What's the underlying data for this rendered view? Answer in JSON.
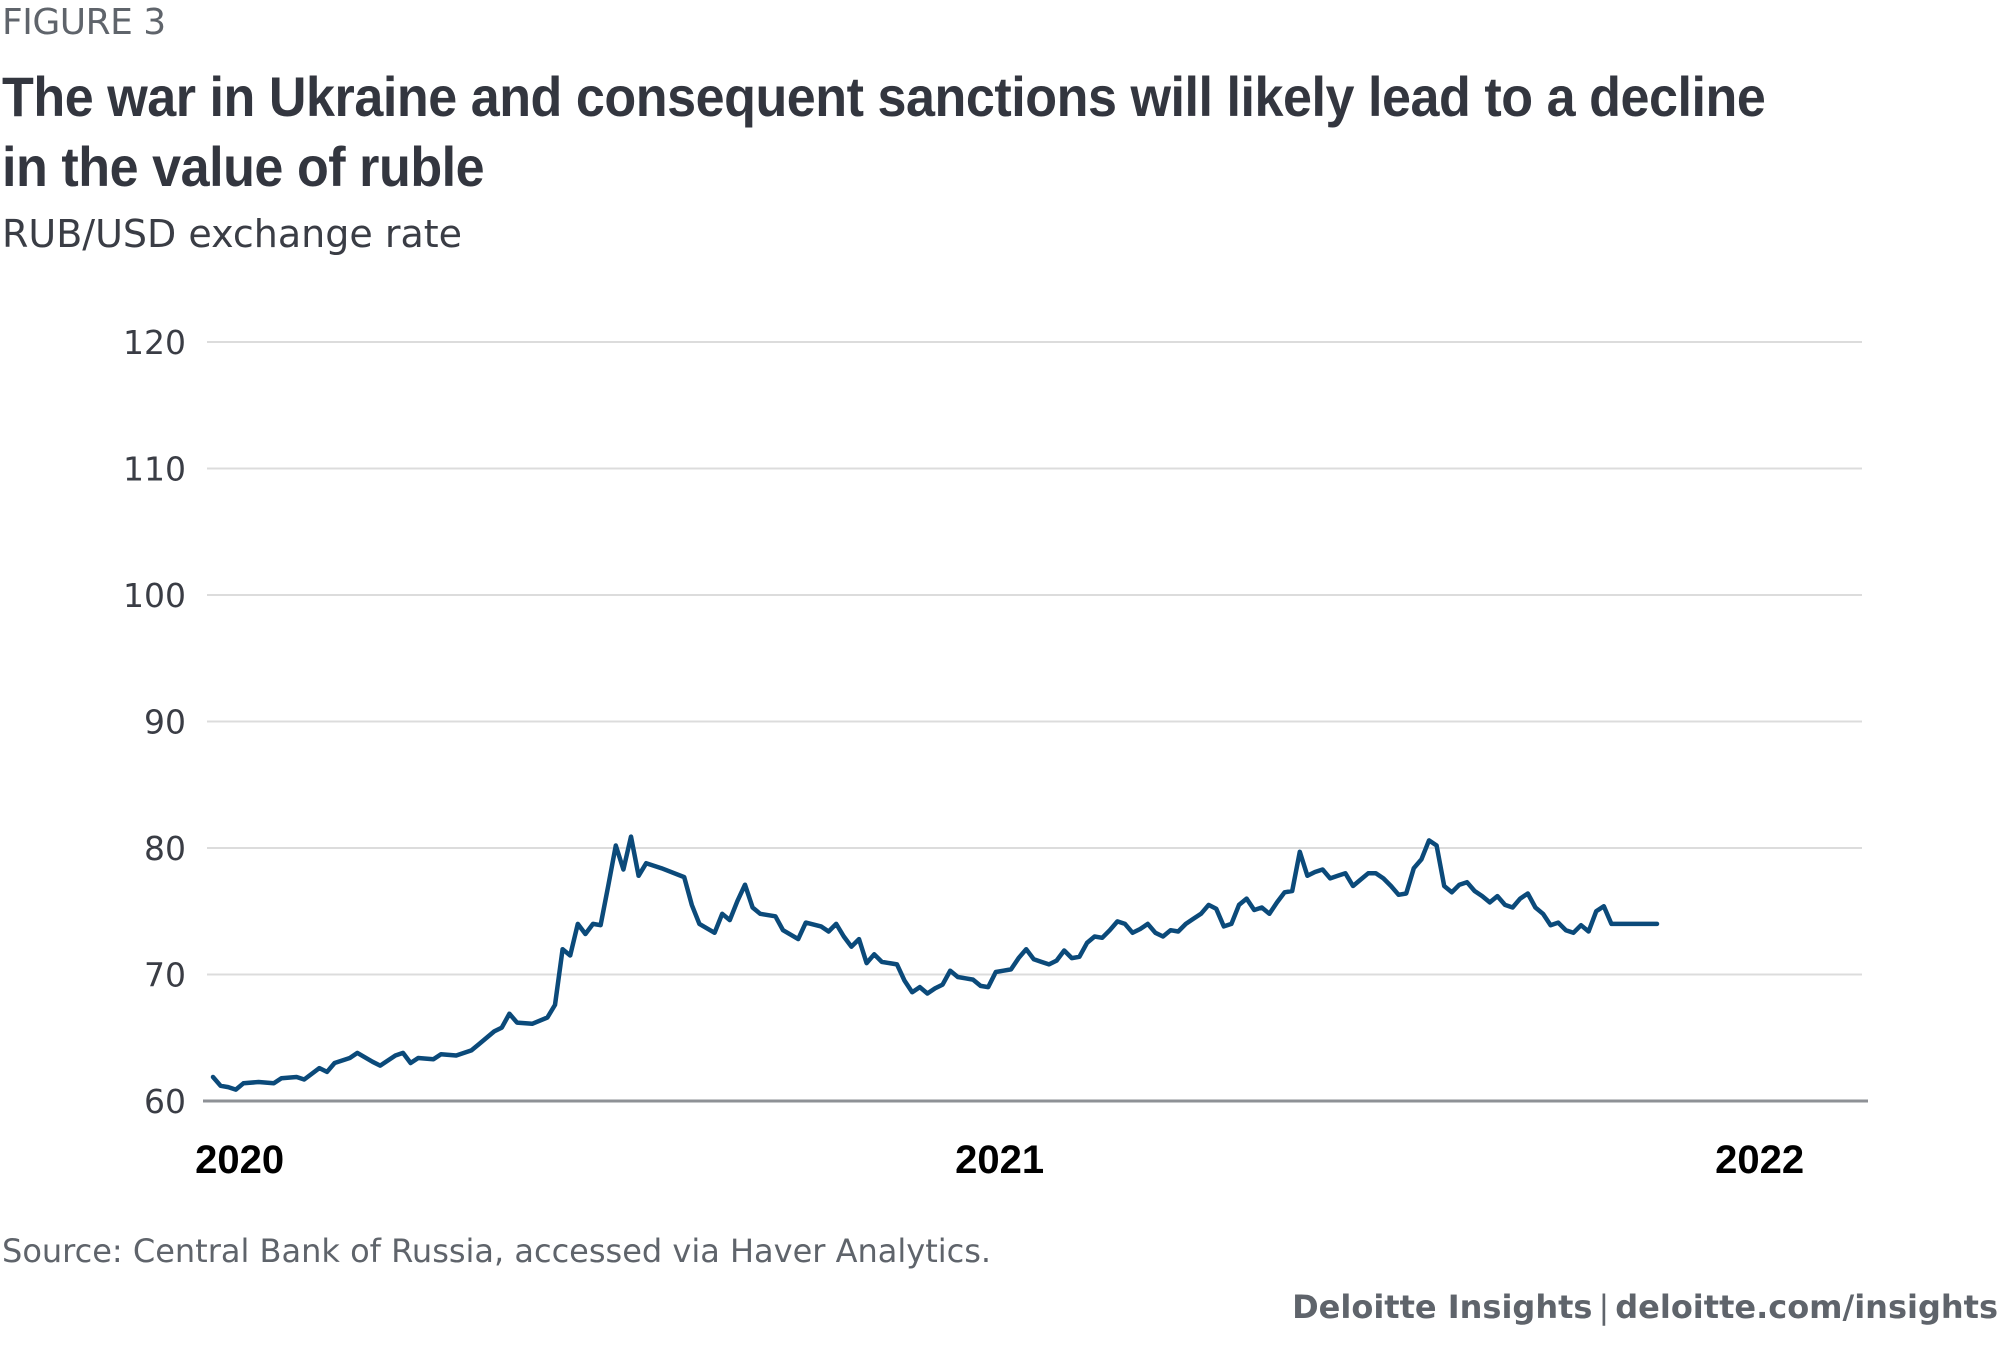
{
  "figure_label": "FIGURE 3",
  "title": "The war in Ukraine and consequent sanctions will likely lead to a decline in the value of ruble",
  "subtitle": "RUB/USD exchange rate",
  "source": "Source: Central Bank of Russia, accessed via Haver Analytics.",
  "brand": {
    "name": "Deloitte Insights",
    "separator": "|",
    "url": "deloitte.com/insights"
  },
  "colors": {
    "line": "#0b4a7a",
    "grid": "#dcdcdc",
    "axis": "#8e9196"
  },
  "chart_data": {
    "type": "line",
    "title": "RUB/USD exchange rate",
    "xlabel": "",
    "ylabel": "",
    "ylim": [
      60,
      120
    ],
    "yticks": [
      60,
      70,
      80,
      90,
      100,
      110,
      120
    ],
    "xticks": [
      {
        "label": "2020",
        "t": 0.035
      },
      {
        "label": "2021",
        "t": 1.035
      },
      {
        "label": "2022",
        "t": 2.035
      }
    ],
    "xlim": [
      0,
      2.2
    ],
    "grid": true,
    "legend": "none",
    "series": [
      {
        "name": "RUB/USD",
        "points": [
          [
            0.0,
            61.9
          ],
          [
            0.01,
            61.2
          ],
          [
            0.02,
            61.1
          ],
          [
            0.03,
            60.9
          ],
          [
            0.04,
            61.4
          ],
          [
            0.06,
            61.5
          ],
          [
            0.08,
            61.4
          ],
          [
            0.09,
            61.8
          ],
          [
            0.11,
            61.9
          ],
          [
            0.12,
            61.7
          ],
          [
            0.14,
            62.6
          ],
          [
            0.15,
            62.3
          ],
          [
            0.16,
            63.0
          ],
          [
            0.18,
            63.4
          ],
          [
            0.19,
            63.8
          ],
          [
            0.21,
            63.1
          ],
          [
            0.22,
            62.8
          ],
          [
            0.24,
            63.6
          ],
          [
            0.25,
            63.8
          ],
          [
            0.26,
            63.0
          ],
          [
            0.27,
            63.4
          ],
          [
            0.29,
            63.3
          ],
          [
            0.3,
            63.7
          ],
          [
            0.32,
            63.6
          ],
          [
            0.34,
            64.0
          ],
          [
            0.35,
            64.5
          ],
          [
            0.37,
            65.5
          ],
          [
            0.38,
            65.8
          ],
          [
            0.39,
            66.9
          ],
          [
            0.4,
            66.2
          ],
          [
            0.42,
            66.1
          ],
          [
            0.44,
            66.6
          ],
          [
            0.45,
            67.6
          ],
          [
            0.46,
            72.0
          ],
          [
            0.47,
            71.5
          ],
          [
            0.48,
            74.0
          ],
          [
            0.49,
            73.2
          ],
          [
            0.5,
            74.0
          ],
          [
            0.51,
            73.9
          ],
          [
            0.52,
            77.0
          ],
          [
            0.53,
            80.2
          ],
          [
            0.54,
            78.3
          ],
          [
            0.55,
            80.9
          ],
          [
            0.56,
            77.8
          ],
          [
            0.57,
            78.8
          ],
          [
            0.59,
            78.4
          ],
          [
            0.62,
            77.7
          ],
          [
            0.63,
            75.5
          ],
          [
            0.64,
            74.0
          ],
          [
            0.66,
            73.3
          ],
          [
            0.67,
            74.8
          ],
          [
            0.68,
            74.3
          ],
          [
            0.69,
            75.8
          ],
          [
            0.7,
            77.1
          ],
          [
            0.71,
            75.3
          ],
          [
            0.72,
            74.8
          ],
          [
            0.74,
            74.6
          ],
          [
            0.75,
            73.5
          ],
          [
            0.77,
            72.8
          ],
          [
            0.78,
            74.1
          ],
          [
            0.8,
            73.8
          ],
          [
            0.81,
            73.4
          ],
          [
            0.82,
            74.0
          ],
          [
            0.83,
            73.0
          ],
          [
            0.84,
            72.2
          ],
          [
            0.85,
            72.8
          ],
          [
            0.86,
            70.9
          ],
          [
            0.87,
            71.6
          ],
          [
            0.88,
            71.0
          ],
          [
            0.9,
            70.8
          ],
          [
            0.91,
            69.5
          ],
          [
            0.92,
            68.6
          ],
          [
            0.93,
            69.0
          ],
          [
            0.94,
            68.5
          ],
          [
            0.95,
            68.9
          ],
          [
            0.96,
            69.2
          ],
          [
            0.97,
            70.3
          ],
          [
            0.98,
            69.8
          ],
          [
            0.99,
            69.7
          ],
          [
            1.0,
            69.6
          ],
          [
            1.01,
            69.1
          ],
          [
            1.02,
            69.0
          ],
          [
            1.03,
            70.2
          ],
          [
            1.04,
            70.3
          ],
          [
            1.05,
            70.4
          ],
          [
            1.06,
            71.3
          ],
          [
            1.07,
            72.0
          ],
          [
            1.08,
            71.2
          ],
          [
            1.09,
            71.0
          ],
          [
            1.1,
            70.8
          ],
          [
            1.11,
            71.1
          ],
          [
            1.12,
            71.9
          ],
          [
            1.13,
            71.3
          ],
          [
            1.14,
            71.4
          ],
          [
            1.15,
            72.5
          ],
          [
            1.16,
            73.0
          ],
          [
            1.17,
            72.9
          ],
          [
            1.18,
            73.5
          ],
          [
            1.19,
            74.2
          ],
          [
            1.2,
            74.0
          ],
          [
            1.21,
            73.3
          ],
          [
            1.22,
            73.6
          ],
          [
            1.23,
            74.0
          ],
          [
            1.24,
            73.3
          ],
          [
            1.25,
            73.0
          ],
          [
            1.26,
            73.5
          ],
          [
            1.27,
            73.4
          ],
          [
            1.28,
            74.0
          ],
          [
            1.29,
            74.4
          ],
          [
            1.3,
            74.8
          ],
          [
            1.31,
            75.5
          ],
          [
            1.32,
            75.2
          ],
          [
            1.33,
            73.8
          ],
          [
            1.34,
            74.0
          ],
          [
            1.35,
            75.5
          ],
          [
            1.36,
            76.0
          ],
          [
            1.37,
            75.1
          ],
          [
            1.38,
            75.3
          ],
          [
            1.39,
            74.8
          ],
          [
            1.4,
            75.7
          ],
          [
            1.41,
            76.5
          ],
          [
            1.42,
            76.6
          ],
          [
            1.43,
            79.7
          ],
          [
            1.44,
            77.8
          ],
          [
            1.45,
            78.1
          ],
          [
            1.46,
            78.3
          ],
          [
            1.47,
            77.6
          ],
          [
            1.48,
            77.8
          ],
          [
            1.49,
            78.0
          ],
          [
            1.5,
            77.0
          ],
          [
            1.51,
            77.5
          ],
          [
            1.52,
            78.0
          ],
          [
            1.53,
            78.0
          ],
          [
            1.54,
            77.6
          ],
          [
            1.55,
            77.0
          ],
          [
            1.56,
            76.3
          ],
          [
            1.57,
            76.4
          ],
          [
            1.58,
            78.4
          ],
          [
            1.59,
            79.1
          ],
          [
            1.6,
            80.6
          ],
          [
            1.61,
            80.2
          ],
          [
            1.62,
            77.0
          ],
          [
            1.63,
            76.5
          ],
          [
            1.64,
            77.1
          ],
          [
            1.65,
            77.3
          ],
          [
            1.66,
            76.6
          ],
          [
            1.67,
            76.2
          ],
          [
            1.68,
            75.7
          ],
          [
            1.69,
            76.2
          ],
          [
            1.7,
            75.5
          ],
          [
            1.71,
            75.3
          ],
          [
            1.72,
            76.0
          ],
          [
            1.73,
            76.4
          ],
          [
            1.74,
            75.3
          ],
          [
            1.75,
            74.8
          ],
          [
            1.76,
            73.9
          ],
          [
            1.77,
            74.1
          ],
          [
            1.78,
            73.5
          ],
          [
            1.79,
            73.3
          ],
          [
            1.8,
            73.9
          ],
          [
            1.81,
            73.4
          ],
          [
            1.82,
            75.0
          ],
          [
            1.83,
            75.4
          ],
          [
            1.84,
            74.0
          ],
          [
            1.85,
            74.0
          ],
          [
            1.87,
            74.0
          ],
          [
            1.89,
            74.0
          ],
          [
            1.9,
            74.0
          ]
        ]
      }
    ]
  }
}
